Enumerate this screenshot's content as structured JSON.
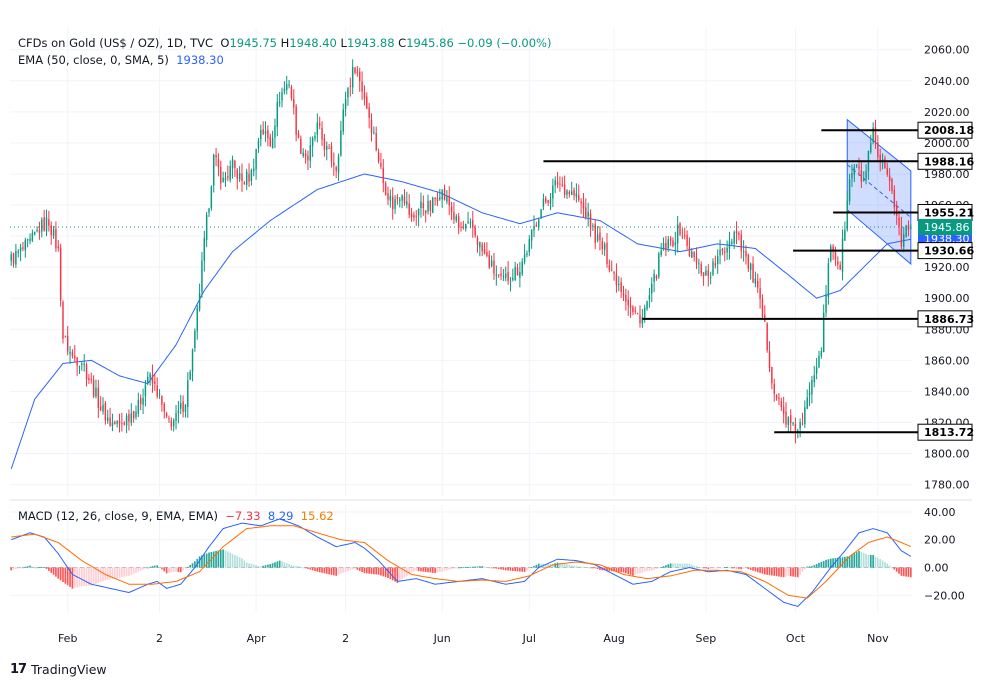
{
  "header": {
    "line1": {
      "symbol": "CFDs on Gold (US$ / OZ), 1D, TVC",
      "o_label": "O",
      "o": "1945.75",
      "h_label": "H",
      "h": "1948.40",
      "l_label": "L",
      "l": "1943.88",
      "c_label": "C",
      "c": "1945.86",
      "chg": "−0.09 (−0.00%)"
    },
    "line2": {
      "ema_label": "EMA (50, close, 0, SMA, 5)",
      "ema_value": "1938.30"
    },
    "macd": {
      "label": "MACD (12, 26, close, 9, EMA, EMA)",
      "hist": "−7.33",
      "macd": "8.29",
      "signal": "15.62"
    }
  },
  "branding": {
    "logo_mark": "17",
    "name": "TradingView"
  },
  "colors": {
    "up": "#089981",
    "down": "#f23645",
    "ema": "#2962ff",
    "macd": "#2962ff",
    "signal": "#ff6d00",
    "channel": "#2962ff",
    "level": "#000000",
    "grid": "#f0f3fa"
  },
  "chart_data": {
    "type": "candlestick",
    "title": "CFDs on Gold (US$ / OZ), 1D, TVC",
    "price_axis": {
      "ylim": [
        1772,
        2074
      ],
      "ticks": [
        1780,
        1800,
        1820,
        1840,
        1860,
        1880,
        1900,
        1920,
        1940,
        1960,
        1980,
        2000,
        2020,
        2040,
        2060
      ],
      "tick_labels": [
        "1780.00",
        "1800.00",
        "1820.00",
        "1840.00",
        "1860.00",
        "1880.00",
        "1900.00",
        "1920.00",
        "1940.00",
        "1960.00",
        "1980.00",
        "2000.00",
        "2020.00",
        "2040.00",
        "2060.00"
      ]
    },
    "time_axis": {
      "labels": [
        "Feb",
        "2",
        "Apr",
        "2",
        "Jun",
        "Jul",
        "Aug",
        "Sep",
        "Oct",
        "Nov"
      ],
      "label_bar_index": [
        24,
        63,
        104,
        142,
        183,
        220,
        256,
        295,
        333,
        368
      ]
    },
    "price_waypoints": [
      [
        0,
        1925
      ],
      [
        4,
        1930
      ],
      [
        8,
        1935
      ],
      [
        12,
        1945
      ],
      [
        16,
        1950
      ],
      [
        20,
        1930
      ],
      [
        22,
        1875
      ],
      [
        26,
        1862
      ],
      [
        30,
        1860
      ],
      [
        34,
        1845
      ],
      [
        38,
        1830
      ],
      [
        42,
        1820
      ],
      [
        46,
        1818
      ],
      [
        50,
        1825
      ],
      [
        54,
        1830
      ],
      [
        58,
        1850
      ],
      [
        62,
        1840
      ],
      [
        66,
        1820
      ],
      [
        70,
        1822
      ],
      [
        74,
        1835
      ],
      [
        78,
        1875
      ],
      [
        82,
        1935
      ],
      [
        86,
        1990
      ],
      [
        90,
        1975
      ],
      [
        94,
        1985
      ],
      [
        98,
        1975
      ],
      [
        102,
        1980
      ],
      [
        106,
        2010
      ],
      [
        110,
        2000
      ],
      [
        114,
        2030
      ],
      [
        118,
        2040
      ],
      [
        122,
        2000
      ],
      [
        126,
        1990
      ],
      [
        130,
        2010
      ],
      [
        134,
        1995
      ],
      [
        138,
        1985
      ],
      [
        142,
        2030
      ],
      [
        146,
        2050
      ],
      [
        150,
        2030
      ],
      [
        154,
        2005
      ],
      [
        158,
        1975
      ],
      [
        162,
        1960
      ],
      [
        166,
        1970
      ],
      [
        170,
        1950
      ],
      [
        174,
        1960
      ],
      [
        178,
        1958
      ],
      [
        182,
        1970
      ],
      [
        186,
        1960
      ],
      [
        190,
        1945
      ],
      [
        196,
        1945
      ],
      [
        200,
        1930
      ],
      [
        204,
        1920
      ],
      [
        208,
        1910
      ],
      [
        212,
        1915
      ],
      [
        216,
        1920
      ],
      [
        220,
        1935
      ],
      [
        224,
        1955
      ],
      [
        228,
        1965
      ],
      [
        232,
        1975
      ],
      [
        236,
        1970
      ],
      [
        240,
        1965
      ],
      [
        244,
        1955
      ],
      [
        248,
        1940
      ],
      [
        252,
        1930
      ],
      [
        256,
        1915
      ],
      [
        260,
        1905
      ],
      [
        264,
        1890
      ],
      [
        268,
        1888
      ],
      [
        272,
        1905
      ],
      [
        276,
        1930
      ],
      [
        280,
        1935
      ],
      [
        284,
        1945
      ],
      [
        288,
        1930
      ],
      [
        292,
        1920
      ],
      [
        296,
        1915
      ],
      [
        300,
        1925
      ],
      [
        304,
        1935
      ],
      [
        308,
        1945
      ],
      [
        312,
        1925
      ],
      [
        316,
        1910
      ],
      [
        320,
        1880
      ],
      [
        324,
        1840
      ],
      [
        328,
        1825
      ],
      [
        332,
        1815
      ],
      [
        336,
        1818
      ],
      [
        340,
        1850
      ],
      [
        344,
        1870
      ],
      [
        348,
        1935
      ],
      [
        352,
        1920
      ],
      [
        356,
        1975
      ],
      [
        358,
        1985
      ],
      [
        362,
        1975
      ],
      [
        364,
        1990
      ],
      [
        366,
        2005
      ],
      [
        368,
        1990
      ],
      [
        370,
        1985
      ],
      [
        372,
        1975
      ],
      [
        374,
        1968
      ],
      [
        376,
        1955
      ],
      [
        378,
        1935
      ],
      [
        380,
        1945
      ],
      [
        382,
        1946
      ]
    ],
    "ema50_waypoints": [
      [
        0,
        1790
      ],
      [
        10,
        1835
      ],
      [
        22,
        1858
      ],
      [
        34,
        1860
      ],
      [
        46,
        1850
      ],
      [
        58,
        1845
      ],
      [
        70,
        1870
      ],
      [
        82,
        1905
      ],
      [
        94,
        1930
      ],
      [
        110,
        1950
      ],
      [
        130,
        1970
      ],
      [
        150,
        1980
      ],
      [
        166,
        1975
      ],
      [
        182,
        1968
      ],
      [
        200,
        1955
      ],
      [
        216,
        1948
      ],
      [
        232,
        1955
      ],
      [
        250,
        1950
      ],
      [
        266,
        1935
      ],
      [
        284,
        1930
      ],
      [
        300,
        1935
      ],
      [
        316,
        1932
      ],
      [
        330,
        1915
      ],
      [
        342,
        1900
      ],
      [
        352,
        1905
      ],
      [
        362,
        1920
      ],
      [
        372,
        1935
      ],
      [
        382,
        1938
      ]
    ],
    "horizontal_levels": [
      {
        "label": "2008.18",
        "value": 2008.18,
        "from_bar": 344
      },
      {
        "label": "1988.16",
        "value": 1988.16,
        "from_bar": 226
      },
      {
        "label": "1955.21",
        "value": 1955.21,
        "from_bar": 349
      },
      {
        "label": "1930.66",
        "value": 1930.66,
        "from_bar": 332
      },
      {
        "label": "1886.73",
        "value": 1886.73,
        "from_bar": 268
      },
      {
        "label": "1813.72",
        "value": 1813.72,
        "from_bar": 324
      }
    ],
    "current_price": {
      "label": "1945.86",
      "value": 1945.86
    },
    "ema_axis_label": {
      "label": "1938.30",
      "value": 1938.3
    },
    "channel": {
      "upper": [
        [
          355,
          2015
        ],
        [
          382,
          1982
        ]
      ],
      "lower": [
        [
          355,
          1957
        ],
        [
          382,
          1922
        ]
      ]
    },
    "macd_axis": {
      "ylim": [
        -32,
        45
      ],
      "ticks": [
        -20,
        0,
        20,
        40
      ],
      "tick_labels": [
        "−20.00",
        "0.00",
        "20.00",
        "40.00"
      ]
    },
    "macd_waypoints": [
      [
        0,
        20
      ],
      [
        8,
        25
      ],
      [
        14,
        22
      ],
      [
        20,
        10
      ],
      [
        26,
        -5
      ],
      [
        34,
        -12
      ],
      [
        42,
        -15
      ],
      [
        50,
        -18
      ],
      [
        58,
        -12
      ],
      [
        62,
        -10
      ],
      [
        66,
        -15
      ],
      [
        72,
        -12
      ],
      [
        78,
        0
      ],
      [
        84,
        15
      ],
      [
        90,
        28
      ],
      [
        98,
        32
      ],
      [
        106,
        30
      ],
      [
        114,
        35
      ],
      [
        122,
        30
      ],
      [
        130,
        22
      ],
      [
        138,
        15
      ],
      [
        146,
        18
      ],
      [
        150,
        14
      ],
      [
        156,
        5
      ],
      [
        164,
        -10
      ],
      [
        172,
        -8
      ],
      [
        180,
        -12
      ],
      [
        190,
        -10
      ],
      [
        200,
        -8
      ],
      [
        210,
        -12
      ],
      [
        218,
        -10
      ],
      [
        224,
        0
      ],
      [
        232,
        6
      ],
      [
        240,
        5
      ],
      [
        248,
        2
      ],
      [
        256,
        -5
      ],
      [
        264,
        -12
      ],
      [
        272,
        -10
      ],
      [
        280,
        -3
      ],
      [
        288,
        0
      ],
      [
        296,
        -3
      ],
      [
        304,
        -2
      ],
      [
        312,
        -5
      ],
      [
        320,
        -15
      ],
      [
        328,
        -25
      ],
      [
        334,
        -28
      ],
      [
        340,
        -18
      ],
      [
        348,
        0
      ],
      [
        354,
        12
      ],
      [
        360,
        25
      ],
      [
        366,
        28
      ],
      [
        372,
        25
      ],
      [
        378,
        12
      ],
      [
        382,
        8
      ]
    ],
    "signal_waypoints": [
      [
        0,
        22
      ],
      [
        10,
        24
      ],
      [
        20,
        18
      ],
      [
        30,
        5
      ],
      [
        40,
        -5
      ],
      [
        50,
        -12
      ],
      [
        60,
        -12
      ],
      [
        70,
        -10
      ],
      [
        80,
        -3
      ],
      [
        90,
        15
      ],
      [
        100,
        28
      ],
      [
        110,
        30
      ],
      [
        120,
        30
      ],
      [
        130,
        25
      ],
      [
        140,
        20
      ],
      [
        150,
        18
      ],
      [
        160,
        5
      ],
      [
        170,
        -5
      ],
      [
        180,
        -8
      ],
      [
        190,
        -10
      ],
      [
        200,
        -9
      ],
      [
        210,
        -10
      ],
      [
        220,
        -6
      ],
      [
        230,
        2
      ],
      [
        240,
        4
      ],
      [
        250,
        2
      ],
      [
        260,
        -5
      ],
      [
        270,
        -8
      ],
      [
        280,
        -6
      ],
      [
        290,
        -2
      ],
      [
        300,
        -2
      ],
      [
        310,
        -3
      ],
      [
        320,
        -10
      ],
      [
        330,
        -20
      ],
      [
        338,
        -22
      ],
      [
        346,
        -10
      ],
      [
        356,
        8
      ],
      [
        364,
        18
      ],
      [
        372,
        22
      ],
      [
        378,
        18
      ],
      [
        382,
        15
      ]
    ]
  }
}
